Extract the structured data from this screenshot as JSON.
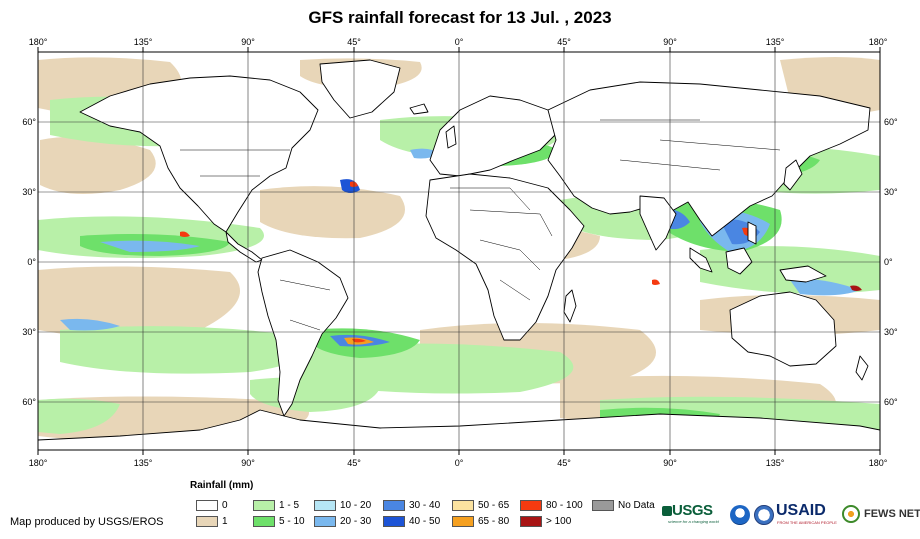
{
  "title": "GFS rainfall forecast for 13 Jul. , 2023",
  "map": {
    "lon_labels": [
      "180°",
      "135°",
      "90°",
      "45°",
      "0°",
      "45°",
      "90°",
      "135°",
      "180°"
    ],
    "lat_labels": [
      "60°",
      "30°",
      "0°",
      "30°",
      "60°"
    ]
  },
  "legend": {
    "title": "Rainfall (mm)",
    "items": [
      {
        "label": "0",
        "color": "#ffffff"
      },
      {
        "label": "1",
        "color": "#e8d6b8"
      },
      {
        "label": "1 - 5",
        "color": "#b8f0a8"
      },
      {
        "label": "5 - 10",
        "color": "#6ee06a"
      },
      {
        "label": "10 - 20",
        "color": "#b6e6f5"
      },
      {
        "label": "20 - 30",
        "color": "#7ab8ee"
      },
      {
        "label": "30 - 40",
        "color": "#4a86e2"
      },
      {
        "label": "40 - 50",
        "color": "#1d54d6"
      },
      {
        "label": "50 - 65",
        "color": "#fbe2a0"
      },
      {
        "label": "65 - 80",
        "color": "#f5a020"
      },
      {
        "label": "80 - 100",
        "color": "#f53a10"
      },
      {
        "label": "> 100",
        "color": "#a81414"
      },
      {
        "label": "No Data",
        "color": "#9a9a9a"
      }
    ]
  },
  "credit": "Map produced by USGS/EROS",
  "logos": {
    "usgs": "USGS",
    "usgs_tagline": "science for a changing world",
    "usaid": "USAID",
    "usaid_tagline": "FROM THE AMERICAN PEOPLE",
    "fews": "FEWS NET"
  },
  "colors": {
    "land_fill": "#ffffff",
    "coastline": "#000000",
    "graticule": "#333333"
  }
}
